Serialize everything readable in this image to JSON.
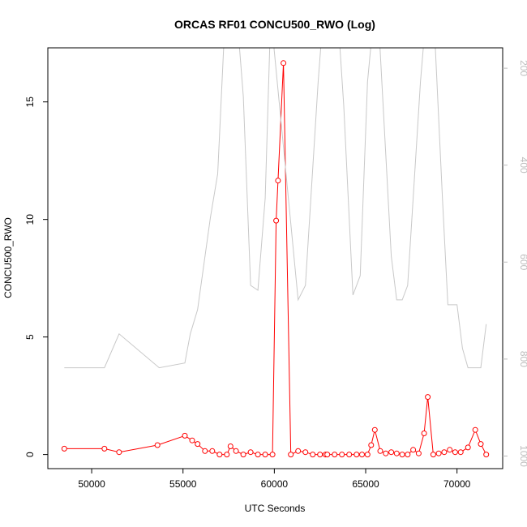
{
  "chart_data": {
    "type": "line",
    "title": "ORCAS RF01 CONCU500_RWO (Log)",
    "xlabel": "UTC Seconds",
    "ylabel": "CONCU500_RWO",
    "xlim": [
      47600,
      72500
    ],
    "ylim": [
      -0.6,
      17.3
    ],
    "x_ticks": [
      50000,
      55000,
      60000,
      65000,
      70000
    ],
    "y_ticks": [
      0,
      5,
      10,
      15
    ],
    "y2_ticks": [
      200,
      400,
      600,
      800,
      1000
    ],
    "y2lim": [
      158,
      1026
    ],
    "grid": false,
    "legend": "none",
    "series": [
      {
        "color": "#ff0000",
        "axis": "left",
        "x": [
          48500,
          50700,
          51500,
          53600,
          55100,
          55500,
          55800,
          56200,
          56600,
          57000,
          57400,
          57600,
          57900,
          58300,
          58700,
          59100,
          59500,
          59900,
          60100,
          60200,
          60500,
          60900,
          61300,
          61700,
          62100,
          62500,
          62800,
          62900,
          63300,
          63700,
          64100,
          64500,
          64800,
          65100,
          65300,
          65500,
          65800,
          66100,
          66400,
          66700,
          67000,
          67300,
          67600,
          67900,
          68200,
          68400,
          68700,
          69000,
          69300,
          69600,
          69900,
          70200,
          70600,
          71000,
          71300,
          71600
        ],
        "y": [
          0.25,
          0.25,
          0.1,
          0.4,
          0.8,
          0.6,
          0.45,
          0.15,
          0.15,
          0.0,
          0.0,
          0.35,
          0.15,
          0.0,
          0.1,
          0.0,
          0.0,
          0.0,
          9.95,
          11.65,
          16.65,
          0.0,
          0.15,
          0.1,
          0.0,
          0.0,
          0.0,
          0.0,
          0.0,
          0.0,
          0.0,
          0.0,
          0.0,
          0.0,
          0.4,
          1.05,
          0.15,
          0.05,
          0.1,
          0.05,
          0.0,
          0.0,
          0.2,
          0.05,
          0.9,
          2.45,
          0.0,
          0.05,
          0.1,
          0.2,
          0.1,
          0.1,
          0.3,
          1.05,
          0.45,
          0.0
        ]
      },
      {
        "color": "#c8c8c8",
        "axis": "right",
        "x": [
          48500,
          50700,
          51500,
          53700,
          55100,
          55400,
          55800,
          56500,
          56900,
          57400,
          57800,
          58300,
          58700,
          59100,
          59500,
          59800,
          61300,
          61700,
          62400,
          62800,
          63400,
          63800,
          64300,
          64700,
          65100,
          65600,
          66400,
          66700,
          67000,
          67300,
          67600,
          68000,
          68400,
          68700,
          69200,
          69500,
          70000,
          70300,
          70600,
          71000,
          71300,
          71600
        ],
        "y": [
          818,
          818,
          748,
          818,
          808,
          748,
          698,
          508,
          418,
          18,
          18,
          258,
          648,
          658,
          468,
          88,
          678,
          648,
          228,
          28,
          48,
          278,
          668,
          628,
          228,
          28,
          588,
          678,
          678,
          648,
          468,
          228,
          48,
          68,
          468,
          688,
          688,
          778,
          818,
          818,
          818,
          728
        ]
      }
    ]
  }
}
